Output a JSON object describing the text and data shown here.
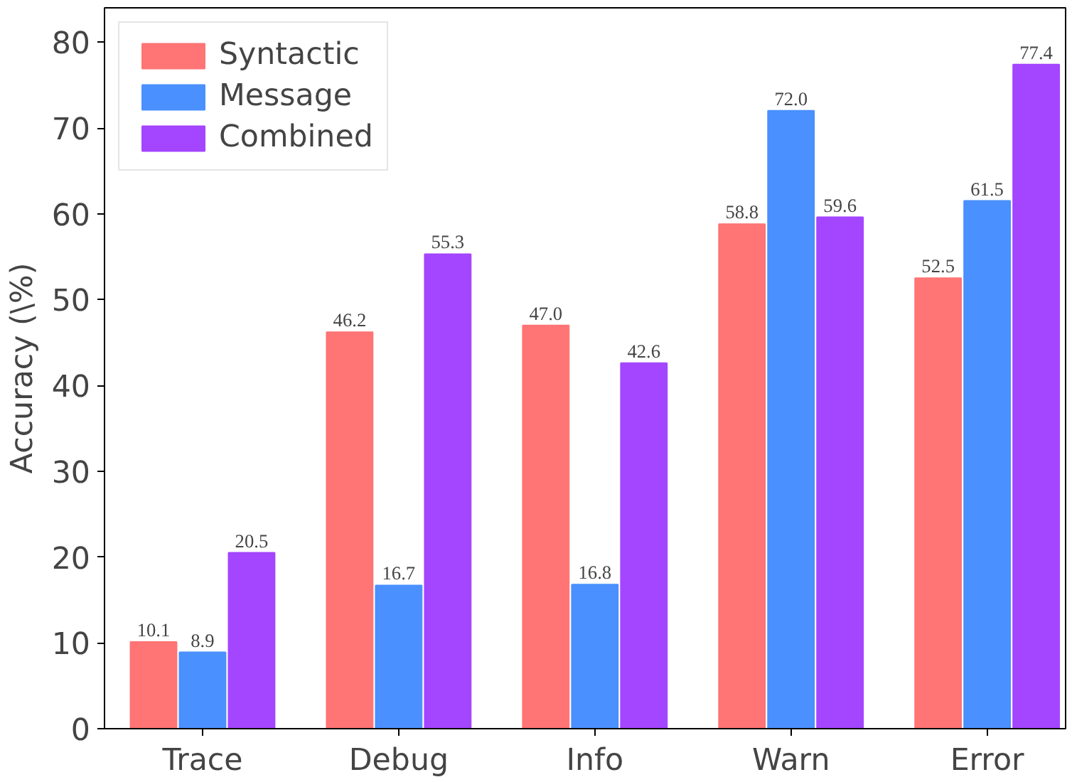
{
  "chart_data": {
    "type": "bar",
    "ylabel": "Accuracy (\\%)",
    "categories": [
      "Trace",
      "Debug",
      "Info",
      "Warn",
      "Error"
    ],
    "series": [
      {
        "name": "Syntactic",
        "color": "#ff7474",
        "values": [
          10.1,
          46.2,
          47.0,
          58.8,
          52.5
        ],
        "value_labels": [
          "10.1",
          "46.2",
          "47.0",
          "58.8",
          "52.5"
        ]
      },
      {
        "name": "Message",
        "color": "#4a90ff",
        "values": [
          8.9,
          16.7,
          16.8,
          72.0,
          61.5
        ],
        "value_labels": [
          "8.9",
          "16.7",
          "16.8",
          "72.0",
          "61.5"
        ]
      },
      {
        "name": "Combined",
        "color": "#a445ff",
        "values": [
          20.5,
          55.3,
          42.6,
          59.6,
          77.4
        ],
        "value_labels": [
          "20.5",
          "55.3",
          "42.6",
          "59.6",
          "77.4"
        ]
      }
    ],
    "ylim": [
      0,
      84
    ],
    "yticks": [
      0,
      10,
      20,
      30,
      40,
      50,
      60,
      70,
      80
    ],
    "grid": false,
    "legend": "top left"
  }
}
